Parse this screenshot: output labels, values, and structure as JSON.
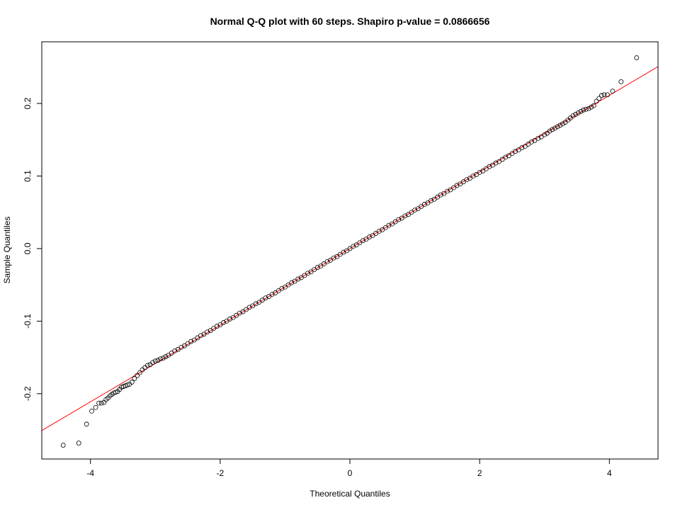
{
  "chart_data": {
    "type": "scatter",
    "title": "Normal Q-Q plot with 60 steps. Shapiro p-value = 0.0866656",
    "xlabel": "Theoretical Quantiles",
    "ylabel": "Sample Quantiles",
    "xlim": [
      -4.75,
      4.75
    ],
    "ylim": [
      -0.29,
      0.285
    ],
    "x_ticks": [
      -4,
      -2,
      0,
      2,
      4
    ],
    "x_tick_labels": [
      "-4",
      "-2",
      "0",
      "2",
      "4"
    ],
    "y_ticks": [
      -0.2,
      -0.1,
      0.0,
      0.1,
      0.2
    ],
    "y_tick_labels": [
      "-0.2",
      "-0.1",
      "0.0",
      "0.1",
      "0.2"
    ],
    "grid": false,
    "reference_line": {
      "slope": 0.0528,
      "intercept": 0.0,
      "color": "#ff0000"
    },
    "series": [
      {
        "marker": "open-circle",
        "color": "#000000",
        "x": [
          -4.42,
          -4.18,
          -4.06,
          -3.98,
          -3.92,
          -3.87,
          -3.83,
          -3.79,
          -3.76,
          -3.73,
          -3.7,
          -3.67,
          -3.64,
          -3.61,
          -3.58,
          -3.55,
          -3.52,
          -3.49,
          -3.46,
          -3.43,
          -3.4,
          -3.36,
          -3.32,
          -3.28,
          -3.24,
          -3.2,
          -3.16,
          -3.12,
          -3.08,
          -3.04,
          -3.0,
          -2.96,
          -2.92,
          -2.88,
          -2.84,
          -2.8,
          -2.75,
          -2.7,
          -2.65,
          -2.6,
          -2.55,
          -2.5,
          -2.45,
          -2.4,
          -2.35,
          -2.3,
          -2.25,
          -2.2,
          -2.15,
          -2.1,
          -2.05,
          -2.0,
          -1.95,
          -1.9,
          -1.85,
          -1.8,
          -1.75,
          -1.7,
          -1.65,
          -1.6,
          -1.55,
          -1.5,
          -1.45,
          -1.4,
          -1.35,
          -1.3,
          -1.25,
          -1.2,
          -1.15,
          -1.1,
          -1.05,
          -1.0,
          -0.95,
          -0.9,
          -0.85,
          -0.8,
          -0.75,
          -0.7,
          -0.65,
          -0.6,
          -0.55,
          -0.5,
          -0.45,
          -0.4,
          -0.35,
          -0.3,
          -0.25,
          -0.2,
          -0.15,
          -0.1,
          -0.05,
          0.0,
          0.05,
          0.1,
          0.15,
          0.2,
          0.25,
          0.3,
          0.35,
          0.4,
          0.45,
          0.5,
          0.55,
          0.6,
          0.65,
          0.7,
          0.75,
          0.8,
          0.85,
          0.9,
          0.95,
          1.0,
          1.05,
          1.1,
          1.15,
          1.2,
          1.25,
          1.3,
          1.35,
          1.4,
          1.45,
          1.5,
          1.55,
          1.6,
          1.65,
          1.7,
          1.75,
          1.8,
          1.85,
          1.9,
          1.95,
          2.0,
          2.05,
          2.1,
          2.15,
          2.2,
          2.25,
          2.3,
          2.35,
          2.4,
          2.45,
          2.5,
          2.55,
          2.6,
          2.65,
          2.7,
          2.75,
          2.8,
          2.85,
          2.9,
          2.95,
          3.0,
          3.04,
          3.08,
          3.12,
          3.16,
          3.2,
          3.24,
          3.28,
          3.32,
          3.36,
          3.4,
          3.44,
          3.48,
          3.52,
          3.56,
          3.6,
          3.64,
          3.68,
          3.72,
          3.76,
          3.8,
          3.84,
          3.88,
          3.92,
          3.97,
          4.05,
          4.18,
          4.42
        ],
        "y": [
          -0.271,
          -0.268,
          -0.242,
          -0.224,
          -0.219,
          -0.213,
          -0.213,
          -0.212,
          -0.208,
          -0.206,
          -0.203,
          -0.201,
          -0.199,
          -0.198,
          -0.197,
          -0.194,
          -0.191,
          -0.19,
          -0.189,
          -0.188,
          -0.187,
          -0.184,
          -0.179,
          -0.175,
          -0.171,
          -0.167,
          -0.164,
          -0.161,
          -0.16,
          -0.157,
          -0.155,
          -0.154,
          -0.152,
          -0.151,
          -0.149,
          -0.147,
          -0.144,
          -0.141,
          -0.139,
          -0.136,
          -0.134,
          -0.131,
          -0.128,
          -0.126,
          -0.123,
          -0.12,
          -0.118,
          -0.115,
          -0.113,
          -0.11,
          -0.107,
          -0.105,
          -0.102,
          -0.1,
          -0.097,
          -0.095,
          -0.092,
          -0.089,
          -0.087,
          -0.084,
          -0.081,
          -0.079,
          -0.076,
          -0.074,
          -0.071,
          -0.068,
          -0.066,
          -0.063,
          -0.061,
          -0.058,
          -0.055,
          -0.053,
          -0.05,
          -0.047,
          -0.045,
          -0.042,
          -0.04,
          -0.037,
          -0.034,
          -0.032,
          -0.029,
          -0.026,
          -0.024,
          -0.021,
          -0.018,
          -0.016,
          -0.013,
          -0.011,
          -0.008,
          -0.005,
          -0.003,
          0.0,
          0.003,
          0.005,
          0.008,
          0.011,
          0.013,
          0.016,
          0.018,
          0.021,
          0.024,
          0.026,
          0.029,
          0.032,
          0.034,
          0.037,
          0.04,
          0.042,
          0.045,
          0.047,
          0.05,
          0.053,
          0.055,
          0.058,
          0.061,
          0.063,
          0.066,
          0.068,
          0.071,
          0.074,
          0.076,
          0.079,
          0.081,
          0.084,
          0.087,
          0.089,
          0.092,
          0.095,
          0.097,
          0.1,
          0.102,
          0.105,
          0.107,
          0.11,
          0.113,
          0.115,
          0.118,
          0.12,
          0.123,
          0.126,
          0.128,
          0.131,
          0.134,
          0.136,
          0.139,
          0.141,
          0.144,
          0.147,
          0.149,
          0.152,
          0.154,
          0.157,
          0.159,
          0.162,
          0.164,
          0.166,
          0.168,
          0.17,
          0.172,
          0.174,
          0.177,
          0.18,
          0.183,
          0.185,
          0.187,
          0.189,
          0.191,
          0.192,
          0.193,
          0.195,
          0.197,
          0.203,
          0.207,
          0.211,
          0.212,
          0.212,
          0.217,
          0.23,
          0.263
        ]
      }
    ]
  }
}
